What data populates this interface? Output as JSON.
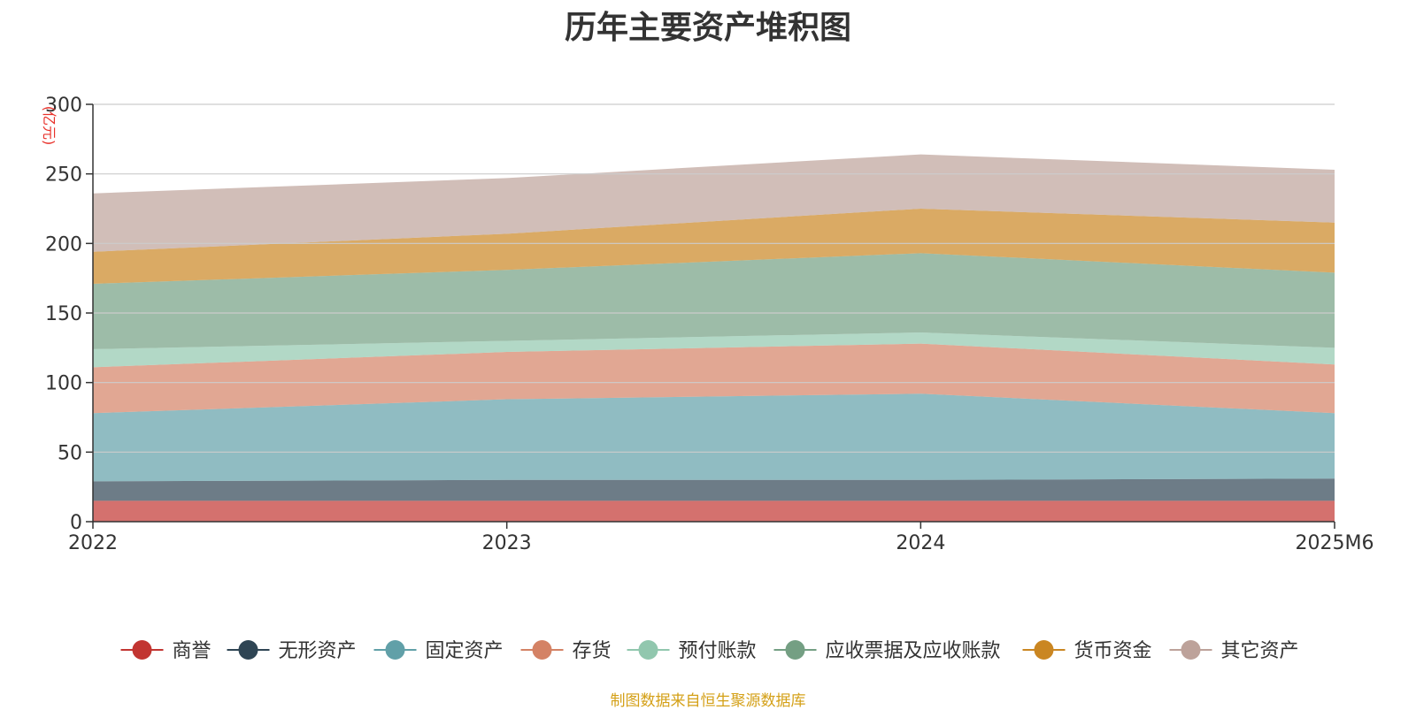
{
  "chart_data": {
    "type": "area",
    "stacked": true,
    "title": "历年主要资产堆积图",
    "unit": "(亿元)",
    "categories": [
      "2022",
      "2023",
      "2024",
      "2025M6"
    ],
    "ylim": [
      0,
      300
    ],
    "yticks": [
      0,
      50,
      100,
      150,
      200,
      250,
      300
    ],
    "grid": true,
    "legend_position": "bottom",
    "series": [
      {
        "name": "商誉",
        "values": [
          15,
          15,
          15,
          15
        ],
        "color": "#c23531"
      },
      {
        "name": "无形资产",
        "values": [
          14,
          15,
          15,
          16
        ],
        "color": "#2f4554"
      },
      {
        "name": "固定资产",
        "values": [
          49,
          58,
          62,
          47
        ],
        "color": "#61a0a8"
      },
      {
        "name": "存货",
        "values": [
          33,
          34,
          36,
          35
        ],
        "color": "#d48265"
      },
      {
        "name": "预付账款",
        "values": [
          13,
          8,
          8,
          12
        ],
        "color": "#91c7ae"
      },
      {
        "name": "应收票据及应收账款",
        "values": [
          47,
          51,
          57,
          54
        ],
        "color": "#749f83"
      },
      {
        "name": "货币资金",
        "values": [
          23,
          26,
          32,
          36
        ],
        "color": "#ca8622"
      },
      {
        "name": "其它资产",
        "values": [
          42,
          40,
          39,
          38
        ],
        "color": "#bda29a"
      }
    ]
  },
  "source_note": "制图数据来自恒生聚源数据库"
}
